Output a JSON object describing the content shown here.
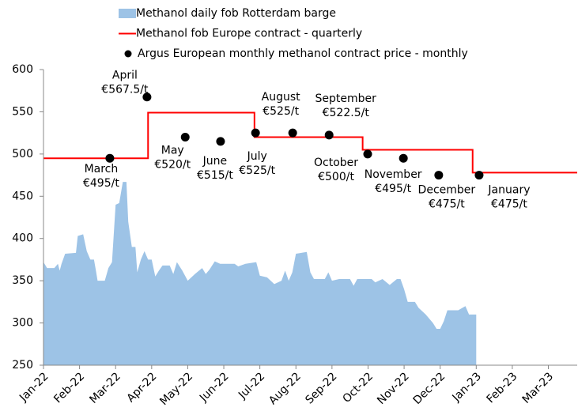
{
  "chart_data": {
    "type": "combo",
    "xlim": [
      0,
      14.8
    ],
    "xticks": [
      {
        "value": 0,
        "label": "Jan-22"
      },
      {
        "value": 1,
        "label": "Feb-22"
      },
      {
        "value": 2,
        "label": "Mar-22"
      },
      {
        "value": 3,
        "label": "Apr-22"
      },
      {
        "value": 4,
        "label": "May-22"
      },
      {
        "value": 5,
        "label": "Jun-22"
      },
      {
        "value": 6,
        "label": "Jul-22"
      },
      {
        "value": 7,
        "label": "Aug-22"
      },
      {
        "value": 8,
        "label": "Sep-22"
      },
      {
        "value": 9,
        "label": "Oct-22"
      },
      {
        "value": 10,
        "label": "Nov-22"
      },
      {
        "value": 11,
        "label": "Dec-22"
      },
      {
        "value": 12,
        "label": "Jan-23"
      },
      {
        "value": 13,
        "label": "Feb-23"
      },
      {
        "value": 14,
        "label": "Mar-23"
      }
    ],
    "ylim": [
      250,
      600
    ],
    "yticks": [
      250,
      300,
      350,
      400,
      450,
      500,
      550,
      600
    ],
    "series": [
      {
        "name": "Methanol daily fob Rotterdam barge",
        "type": "area",
        "color": "#9dc3e6",
        "x": [
          0,
          0.1,
          0.3,
          0.4,
          0.45,
          0.5,
          0.6,
          0.9,
          0.95,
          1.1,
          1.2,
          1.3,
          1.4,
          1.45,
          1.5,
          1.7,
          1.8,
          1.9,
          2.0,
          2.1,
          2.2,
          2.3,
          2.35,
          2.45,
          2.55,
          2.6,
          2.7,
          2.8,
          2.9,
          3.0,
          3.1,
          3.2,
          3.3,
          3.5,
          3.6,
          3.7,
          3.85,
          4.0,
          4.2,
          4.4,
          4.5,
          4.6,
          4.75,
          4.9,
          5.3,
          5.4,
          5.6,
          5.9,
          6.0,
          6.2,
          6.4,
          6.6,
          6.7,
          6.8,
          6.9,
          7.0,
          7.3,
          7.4,
          7.5,
          7.8,
          7.9,
          8.0,
          8.2,
          8.5,
          8.6,
          8.7,
          9.1,
          9.2,
          9.4,
          9.6,
          9.8,
          9.9,
          10.0,
          10.1,
          10.3,
          10.4,
          10.6,
          10.8,
          10.9,
          11.0,
          11.1,
          11.2,
          11.5,
          11.7,
          11.8,
          12.0
        ],
        "values": [
          372,
          365,
          365,
          370,
          362,
          370,
          382,
          383,
          403,
          405,
          385,
          375,
          375,
          363,
          350,
          350,
          365,
          372,
          440,
          442,
          467,
          467,
          420,
          390,
          390,
          360,
          375,
          385,
          375,
          375,
          355,
          362,
          368,
          368,
          358,
          372,
          362,
          350,
          358,
          365,
          358,
          363,
          373,
          370,
          370,
          367,
          370,
          372,
          356,
          354,
          346,
          350,
          362,
          350,
          360,
          382,
          384,
          360,
          352,
          352,
          360,
          350,
          352,
          352,
          344,
          352,
          352,
          348,
          352,
          345,
          352,
          352,
          340,
          325,
          325,
          318,
          310,
          300,
          293,
          293,
          302,
          315,
          315,
          320,
          310,
          310
        ]
      },
      {
        "name": "Methanol fob Europe contract - quarterly",
        "type": "line",
        "color": "#ff0000",
        "x": [
          0,
          2.9,
          2.9,
          5.85,
          5.85,
          8.85,
          8.85,
          11.9,
          11.9,
          14.8
        ],
        "values": [
          495,
          495,
          549,
          549,
          520,
          520,
          505,
          505,
          478,
          478
        ]
      },
      {
        "name": "Argus European monthly methanol contract price - monthly",
        "type": "scatter",
        "color": "#000000",
        "x": [
          1.84,
          2.87,
          3.93,
          4.91,
          5.88,
          6.91,
          7.92,
          8.99,
          9.98,
          10.96,
          12.08
        ],
        "values": [
          495,
          567.5,
          520,
          515,
          525,
          525,
          522.5,
          500,
          495,
          475,
          475
        ],
        "labels": [
          "March",
          "April",
          "May",
          "June",
          "July",
          "August",
          "September",
          "October",
          "November",
          "December",
          "January"
        ],
        "value_labels": [
          "€495/t",
          "€567.5/t",
          "€520/t",
          "€515/t",
          "€525/t",
          "€525/t",
          "€522.5/t",
          "€500/t",
          "€495/t",
          "€475/t",
          "€475/t"
        ]
      }
    ]
  }
}
